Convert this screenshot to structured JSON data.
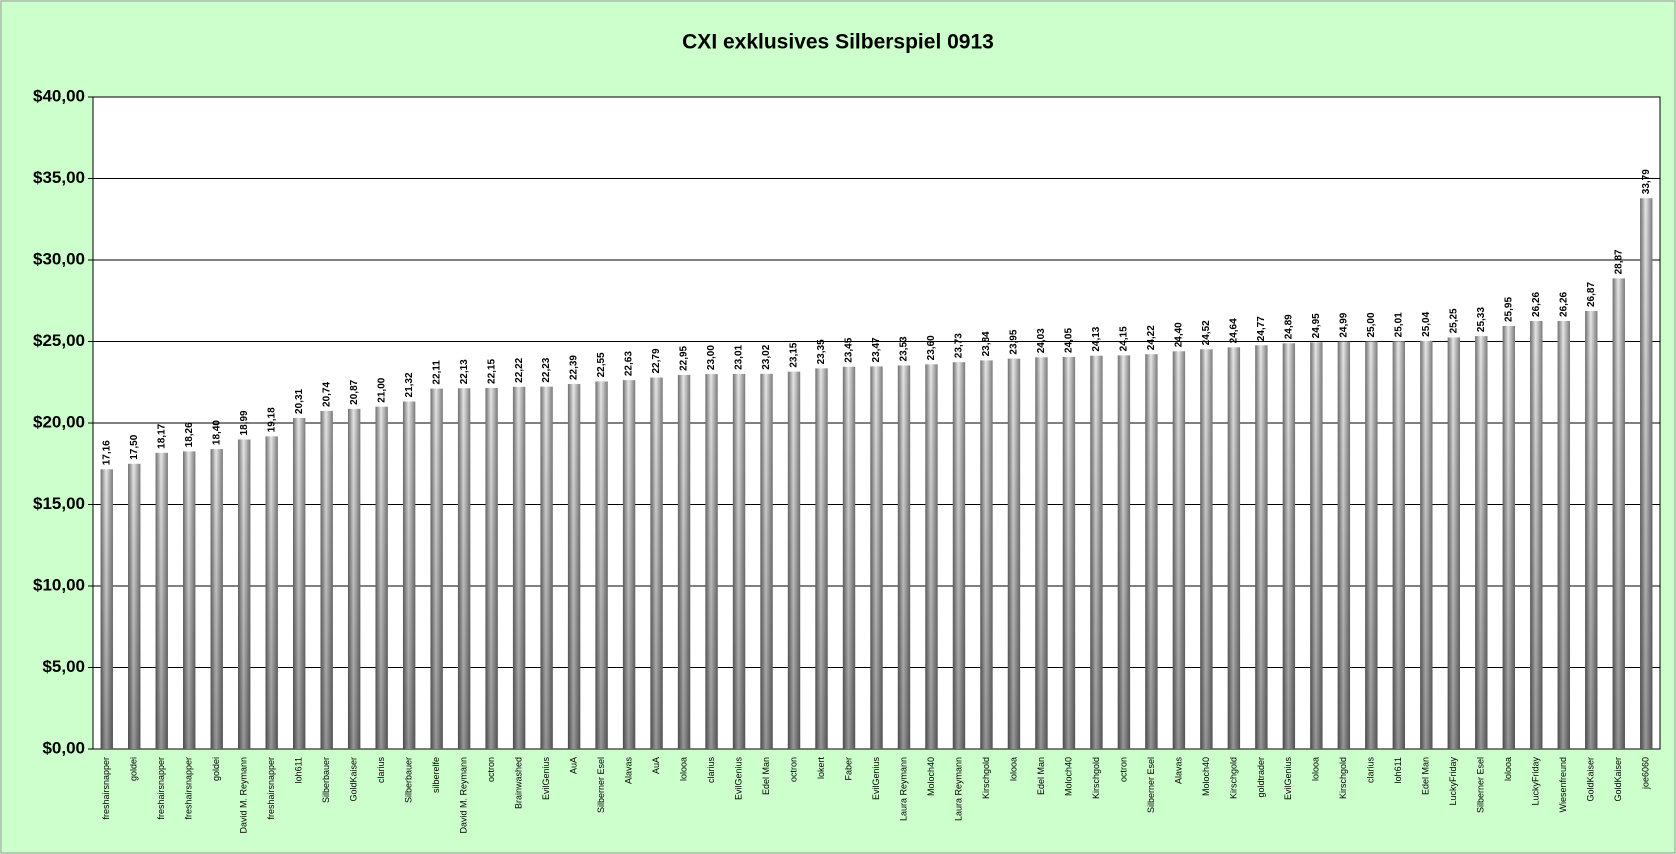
{
  "chart_data": {
    "type": "bar",
    "title": "CXI exklusives Silberspiel 0913",
    "categories": [
      "freshairsnapper",
      "goldei",
      "freshairsnapper",
      "freshairsnapper",
      "goldei",
      "David M. Reymann",
      "freshairsnapper",
      "loh611",
      "Silberbauer",
      "GoldKaiser",
      "clarius",
      "Silberbauer",
      "silberelfe",
      "David M. Reymann",
      "octron",
      "Brainwashed",
      "EvilGenius",
      "AuA",
      "Silberner Esel",
      "Alavas",
      "AuA",
      "lolooa",
      "clarius",
      "EvilGenius",
      "Edel Man",
      "octron",
      "lokert",
      "Faber",
      "EvilGenius",
      "Laura Reymann",
      "Moloch40",
      "Laura Reymann",
      "Kirschgold",
      "lolooa",
      "Edel Man",
      "Moloch40",
      "Kirschgold",
      "octron",
      "Silberner Esel",
      "Alavas",
      "Moloch40",
      "Kirschgold",
      "goldtrader",
      "EvilGenius",
      "lolooa",
      "Kirschgold",
      "clarius",
      "loh611",
      "Edel Man",
      "LuckyFriday",
      "Silberner Esel",
      "lolooa",
      "LuckyFriday",
      "Wiesenfreund",
      "GoldKaiser",
      "GoldKaiser",
      "joe6060"
    ],
    "values": [
      17.16,
      17.5,
      18.17,
      18.26,
      18.4,
      18.99,
      19.18,
      20.31,
      20.74,
      20.87,
      21.0,
      21.32,
      22.11,
      22.13,
      22.15,
      22.22,
      22.23,
      22.39,
      22.55,
      22.63,
      22.79,
      22.95,
      23.0,
      23.01,
      23.02,
      23.15,
      23.35,
      23.45,
      23.47,
      23.53,
      23.6,
      23.73,
      23.84,
      23.95,
      24.03,
      24.05,
      24.13,
      24.15,
      24.22,
      24.4,
      24.52,
      24.64,
      24.77,
      24.89,
      24.95,
      24.99,
      25.0,
      25.01,
      25.04,
      25.25,
      25.33,
      25.95,
      26.26,
      26.26,
      26.87,
      28.87,
      33.79
    ],
    "value_labels": [
      "17,16",
      "17,50",
      "18,17",
      "18,26",
      "18,40",
      "18,99",
      "19,18",
      "20,31",
      "20,74",
      "20,87",
      "21,00",
      "21,32",
      "22,11",
      "22,13",
      "22,15",
      "22,22",
      "22,23",
      "22,39",
      "22,55",
      "22,63",
      "22,79",
      "22,95",
      "23,00",
      "23,01",
      "23,02",
      "23,15",
      "23,35",
      "23,45",
      "23,47",
      "23,53",
      "23,60",
      "23,73",
      "23,84",
      "23,95",
      "24,03",
      "24,05",
      "24,13",
      "24,15",
      "24,22",
      "24,40",
      "24,52",
      "24,64",
      "24,77",
      "24,89",
      "24,95",
      "24,99",
      "25,00",
      "25,01",
      "25,04",
      "25,25",
      "25,33",
      "25,95",
      "26,26",
      "26,26",
      "26,87",
      "28,87",
      "33,79"
    ],
    "color": "#999999",
    "ylim": [
      0,
      40
    ],
    "yticks": [
      {
        "value": 0,
        "label": "$0,00"
      },
      {
        "value": 5,
        "label": "$5,00"
      },
      {
        "value": 10,
        "label": "$10,00"
      },
      {
        "value": 15,
        "label": "$15,00"
      },
      {
        "value": 20,
        "label": "$20,00"
      },
      {
        "value": 25,
        "label": "$25,00"
      },
      {
        "value": 30,
        "label": "$30,00"
      },
      {
        "value": 35,
        "label": "$35,00"
      },
      {
        "value": 40,
        "label": "$40,00"
      }
    ],
    "grid": true
  }
}
